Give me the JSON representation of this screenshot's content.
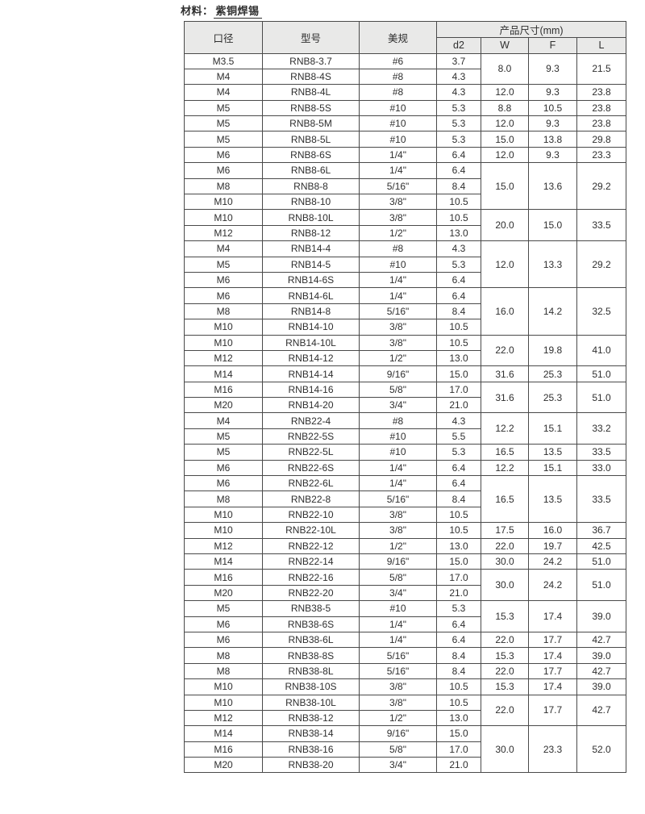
{
  "page": {
    "material_label": "材料：",
    "material_value": "紫铜焊锡"
  },
  "colors": {
    "page_bg": "#ffffff",
    "header_bg": "#e9e9e8",
    "border": "#4a4a4a",
    "text": "#2f2f2f"
  },
  "table": {
    "headers": {
      "caliber": "口径",
      "model": "型号",
      "us_spec": "美规",
      "dims_group": "产品尺寸(mm)",
      "d2": "d2",
      "w": "W",
      "f": "F",
      "l": "L"
    },
    "rows": [
      {
        "caliber": "M3.5",
        "model": "RNB8-3.7",
        "us_spec": "#6",
        "d2": "3.7",
        "dims": {
          "w": "8.0",
          "f": "9.3",
          "l": "21.5",
          "rowspan": 2
        }
      },
      {
        "caliber": "M4",
        "model": "RNB8-4S",
        "us_spec": "#8",
        "d2": "4.3"
      },
      {
        "caliber": "M4",
        "model": "RNB8-4L",
        "us_spec": "#8",
        "d2": "4.3",
        "dims": {
          "w": "12.0",
          "f": "9.3",
          "l": "23.8",
          "rowspan": 1
        }
      },
      {
        "caliber": "M5",
        "model": "RNB8-5S",
        "us_spec": "#10",
        "d2": "5.3",
        "dims": {
          "w": "8.8",
          "f": "10.5",
          "l": "23.8",
          "rowspan": 1
        }
      },
      {
        "caliber": "M5",
        "model": "RNB8-5M",
        "us_spec": "#10",
        "d2": "5.3",
        "dims": {
          "w": "12.0",
          "f": "9.3",
          "l": "23.8",
          "rowspan": 1
        }
      },
      {
        "caliber": "M5",
        "model": "RNB8-5L",
        "us_spec": "#10",
        "d2": "5.3",
        "dims": {
          "w": "15.0",
          "f": "13.8",
          "l": "29.8",
          "rowspan": 1
        }
      },
      {
        "caliber": "M6",
        "model": "RNB8-6S",
        "us_spec": "1/4\"",
        "d2": "6.4",
        "dims": {
          "w": "12.0",
          "f": "9.3",
          "l": "23.3",
          "rowspan": 1
        }
      },
      {
        "caliber": "M6",
        "model": "RNB8-6L",
        "us_spec": "1/4\"",
        "d2": "6.4",
        "dims": {
          "w": "15.0",
          "f": "13.6",
          "l": "29.2",
          "rowspan": 3
        }
      },
      {
        "caliber": "M8",
        "model": "RNB8-8",
        "us_spec": "5/16\"",
        "d2": "8.4"
      },
      {
        "caliber": "M10",
        "model": "RNB8-10",
        "us_spec": "3/8\"",
        "d2": "10.5"
      },
      {
        "caliber": "M10",
        "model": "RNB8-10L",
        "us_spec": "3/8\"",
        "d2": "10.5",
        "dims": {
          "w": "20.0",
          "f": "15.0",
          "l": "33.5",
          "rowspan": 2
        }
      },
      {
        "caliber": "M12",
        "model": "RNB8-12",
        "us_spec": "1/2\"",
        "d2": "13.0"
      },
      {
        "caliber": "M4",
        "model": "RNB14-4",
        "us_spec": "#8",
        "d2": "4.3",
        "dims": {
          "w": "12.0",
          "f": "13.3",
          "l": "29.2",
          "rowspan": 3
        }
      },
      {
        "caliber": "M5",
        "model": "RNB14-5",
        "us_spec": "#10",
        "d2": "5.3"
      },
      {
        "caliber": "M6",
        "model": "RNB14-6S",
        "us_spec": "1/4\"",
        "d2": "6.4"
      },
      {
        "caliber": "M6",
        "model": "RNB14-6L",
        "us_spec": "1/4\"",
        "d2": "6.4",
        "dims": {
          "w": "16.0",
          "f": "14.2",
          "l": "32.5",
          "rowspan": 3
        }
      },
      {
        "caliber": "M8",
        "model": "RNB14-8",
        "us_spec": "5/16\"",
        "d2": "8.4"
      },
      {
        "caliber": "M10",
        "model": "RNB14-10",
        "us_spec": "3/8\"",
        "d2": "10.5"
      },
      {
        "caliber": "M10",
        "model": "RNB14-10L",
        "us_spec": "3/8\"",
        "d2": "10.5",
        "dims": {
          "w": "22.0",
          "f": "19.8",
          "l": "41.0",
          "rowspan": 2
        }
      },
      {
        "caliber": "M12",
        "model": "RNB14-12",
        "us_spec": "1/2\"",
        "d2": "13.0"
      },
      {
        "caliber": "M14",
        "model": "RNB14-14",
        "us_spec": "9/16\"",
        "d2": "15.0",
        "dims": {
          "w": "31.6",
          "f": "25.3",
          "l": "51.0",
          "rowspan": 1
        }
      },
      {
        "caliber": "M16",
        "model": "RNB14-16",
        "us_spec": "5/8\"",
        "d2": "17.0",
        "dims": {
          "w": "31.6",
          "f": "25.3",
          "l": "51.0",
          "rowspan": 2
        }
      },
      {
        "caliber": "M20",
        "model": "RNB14-20",
        "us_spec": "3/4\"",
        "d2": "21.0"
      },
      {
        "caliber": "M4",
        "model": "RNB22-4",
        "us_spec": "#8",
        "d2": "4.3",
        "dims": {
          "w": "12.2",
          "f": "15.1",
          "l": "33.2",
          "rowspan": 2
        }
      },
      {
        "caliber": "M5",
        "model": "RNB22-5S",
        "us_spec": "#10",
        "d2": "5.5"
      },
      {
        "caliber": "M5",
        "model": "RNB22-5L",
        "us_spec": "#10",
        "d2": "5.3",
        "dims": {
          "w": "16.5",
          "f": "13.5",
          "l": "33.5",
          "rowspan": 1
        }
      },
      {
        "caliber": "M6",
        "model": "RNB22-6S",
        "us_spec": "1/4\"",
        "d2": "6.4",
        "dims": {
          "w": "12.2",
          "f": "15.1",
          "l": "33.0",
          "rowspan": 1
        }
      },
      {
        "caliber": "M6",
        "model": "RNB22-6L",
        "us_spec": "1/4\"",
        "d2": "6.4",
        "dims": {
          "w": "16.5",
          "f": "13.5",
          "l": "33.5",
          "rowspan": 3
        }
      },
      {
        "caliber": "M8",
        "model": "RNB22-8",
        "us_spec": "5/16\"",
        "d2": "8.4"
      },
      {
        "caliber": "M10",
        "model": "RNB22-10",
        "us_spec": "3/8\"",
        "d2": "10.5"
      },
      {
        "caliber": "M10",
        "model": "RNB22-10L",
        "us_spec": "3/8\"",
        "d2": "10.5",
        "dims": {
          "w": "17.5",
          "f": "16.0",
          "l": "36.7",
          "rowspan": 1
        }
      },
      {
        "caliber": "M12",
        "model": "RNB22-12",
        "us_spec": "1/2\"",
        "d2": "13.0",
        "dims": {
          "w": "22.0",
          "f": "19.7",
          "l": "42.5",
          "rowspan": 1
        }
      },
      {
        "caliber": "M14",
        "model": "RNB22-14",
        "us_spec": "9/16\"",
        "d2": "15.0",
        "dims": {
          "w": "30.0",
          "f": "24.2",
          "l": "51.0",
          "rowspan": 1
        }
      },
      {
        "caliber": "M16",
        "model": "RNB22-16",
        "us_spec": "5/8\"",
        "d2": "17.0",
        "dims": {
          "w": "30.0",
          "f": "24.2",
          "l": "51.0",
          "rowspan": 2
        }
      },
      {
        "caliber": "M20",
        "model": "RNB22-20",
        "us_spec": "3/4\"",
        "d2": "21.0"
      },
      {
        "caliber": "M5",
        "model": "RNB38-5",
        "us_spec": "#10",
        "d2": "5.3",
        "dims": {
          "w": "15.3",
          "f": "17.4",
          "l": "39.0",
          "rowspan": 2
        }
      },
      {
        "caliber": "M6",
        "model": "RNB38-6S",
        "us_spec": "1/4\"",
        "d2": "6.4"
      },
      {
        "caliber": "M6",
        "model": "RNB38-6L",
        "us_spec": "1/4\"",
        "d2": "6.4",
        "dims": {
          "w": "22.0",
          "f": "17.7",
          "l": "42.7",
          "rowspan": 1
        }
      },
      {
        "caliber": "M8",
        "model": "RNB38-8S",
        "us_spec": "5/16\"",
        "d2": "8.4",
        "dims": {
          "w": "15.3",
          "f": "17.4",
          "l": "39.0",
          "rowspan": 1
        }
      },
      {
        "caliber": "M8",
        "model": "RNB38-8L",
        "us_spec": "5/16\"",
        "d2": "8.4",
        "dims": {
          "w": "22.0",
          "f": "17.7",
          "l": "42.7",
          "rowspan": 1
        }
      },
      {
        "caliber": "M10",
        "model": "RNB38-10S",
        "us_spec": "3/8\"",
        "d2": "10.5",
        "dims": {
          "w": "15.3",
          "f": "17.4",
          "l": "39.0",
          "rowspan": 1
        }
      },
      {
        "caliber": "M10",
        "model": "RNB38-10L",
        "us_spec": "3/8\"",
        "d2": "10.5",
        "dims": {
          "w": "22.0",
          "f": "17.7",
          "l": "42.7",
          "rowspan": 2
        }
      },
      {
        "caliber": "M12",
        "model": "RNB38-12",
        "us_spec": "1/2\"",
        "d2": "13.0"
      },
      {
        "caliber": "M14",
        "model": "RNB38-14",
        "us_spec": "9/16\"",
        "d2": "15.0",
        "dims": {
          "w": "30.0",
          "f": "23.3",
          "l": "52.0",
          "rowspan": 3
        }
      },
      {
        "caliber": "M16",
        "model": "RNB38-16",
        "us_spec": "5/8\"",
        "d2": "17.0"
      },
      {
        "caliber": "M20",
        "model": "RNB38-20",
        "us_spec": "3/4\"",
        "d2": "21.0"
      }
    ]
  }
}
